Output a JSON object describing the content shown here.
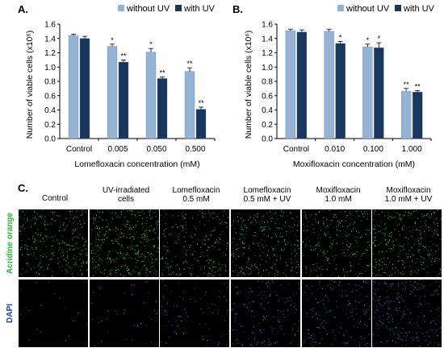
{
  "chart_data": [
    {
      "type": "bar",
      "panel": "A.",
      "categories": [
        "Control",
        "0.005",
        "0.050",
        "0.500"
      ],
      "series": [
        {
          "name": "without UV",
          "values": [
            1.44,
            1.29,
            1.21,
            0.94
          ],
          "errors": [
            0.02,
            0.03,
            0.05,
            0.05
          ],
          "significance": [
            "",
            "*",
            "*",
            "**"
          ]
        },
        {
          "name": "with UV",
          "values": [
            1.4,
            1.07,
            0.84,
            0.41
          ],
          "errors": [
            0.03,
            0.03,
            0.02,
            0.03
          ],
          "significance": [
            "",
            "**",
            "**",
            "**"
          ]
        }
      ],
      "xlabel": "Lomefloxacin concentration (mM)",
      "ylabel": "Number of viable cells (x10⁶)",
      "ylim": [
        0,
        1.6
      ],
      "yticks": [
        "0.0",
        "0.2",
        "0.4",
        "0.6",
        "0.8",
        "1.0",
        "1.2",
        "1.4",
        "1.6"
      ],
      "grid": false,
      "legend": "top-right",
      "colors": {
        "without UV": "#95b3d7",
        "with UV": "#17375e"
      }
    },
    {
      "type": "bar",
      "panel": "B.",
      "categories": [
        "Control",
        "0.010",
        "0.100",
        "1.000"
      ],
      "series": [
        {
          "name": "without UV",
          "values": [
            1.51,
            1.5,
            1.28,
            0.66
          ],
          "errors": [
            0.02,
            0.03,
            0.04,
            0.04
          ],
          "significance": [
            "",
            "",
            "*",
            "**"
          ]
        },
        {
          "name": "with UV",
          "values": [
            1.49,
            1.33,
            1.27,
            0.65
          ],
          "errors": [
            0.03,
            0.03,
            0.07,
            0.02
          ],
          "significance": [
            "",
            "*",
            "*",
            "**"
          ]
        }
      ],
      "xlabel": "Moxifloxacin concentration (mM)",
      "ylabel": "Number of viable cells (x10⁶)",
      "ylim": [
        0,
        1.6
      ],
      "yticks": [
        "0.0",
        "0.2",
        "0.4",
        "0.6",
        "0.8",
        "1.0",
        "1.2",
        "1.4",
        "1.6"
      ],
      "grid": false,
      "legend": "top-right",
      "colors": {
        "without UV": "#95b3d7",
        "with UV": "#17375e"
      }
    }
  ],
  "panel_c": {
    "letter": "C.",
    "columns": [
      [
        "Control"
      ],
      [
        "UV-irradiated",
        "cells"
      ],
      [
        "Lomefloxacin",
        "0.5 mM"
      ],
      [
        "Lomefloxacin",
        "0.5 mM + UV"
      ],
      [
        "Moxifloxacin",
        "1.0 mM"
      ],
      [
        "Moxifloxacin",
        "1.0 mM + UV"
      ]
    ],
    "rows": [
      {
        "label": "Acridine orange",
        "color": "#2bb52b",
        "dot_color": "#3fd43f",
        "densities": [
          0.55,
          0.75,
          0.42,
          0.5,
          0.45,
          0.58
        ]
      },
      {
        "label": "DAPI",
        "color": "#1f3fbf",
        "dot_color": "#3b7fe0",
        "densities": [
          0.05,
          0.1,
          0.2,
          0.4,
          0.45,
          0.6
        ]
      }
    ]
  }
}
